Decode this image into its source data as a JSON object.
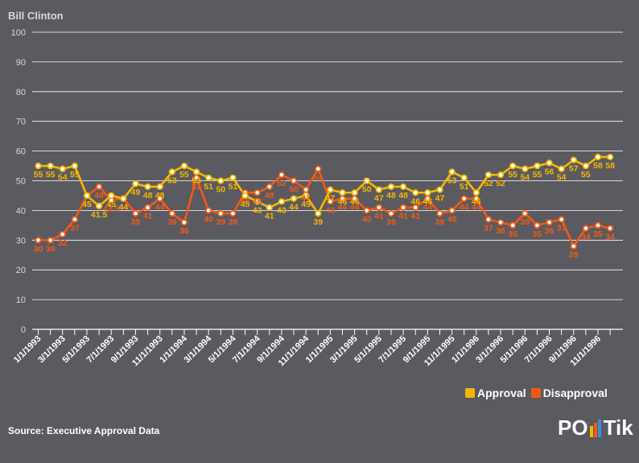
{
  "header": {
    "title": "Bill Clinton"
  },
  "footer": {
    "source": "Source: Executive Approval Data",
    "logo": "POLITIK"
  },
  "colors": {
    "approval": "#f5b800",
    "disapproval": "#f25a14",
    "grid": "#ffffff",
    "background": "#5b5a60"
  },
  "chart_data": {
    "type": "line",
    "title": "Bill Clinton",
    "ylim": [
      0,
      100
    ],
    "yticks": [
      0,
      10,
      20,
      30,
      40,
      50,
      60,
      70,
      80,
      90,
      100
    ],
    "xtick_labels": [
      "1/1/1993",
      "3/1/1993",
      "5/1/1993",
      "7/1/1993",
      "9/1/1993",
      "11/1/1993",
      "1/1/1994",
      "3/1/1994",
      "5/1/1994",
      "7/1/1994",
      "9/1/1994",
      "11/1/1994",
      "1/1/1995",
      "3/1/1995",
      "5/1/1995",
      "7/1/1995",
      "9/1/1995",
      "11/1/1995",
      "1/1/1996",
      "3/1/1996",
      "5/1/1996",
      "7/1/1996",
      "9/1/1996",
      "11/1/1996"
    ],
    "legend_position": "bottom-right",
    "series": [
      {
        "name": "Approval",
        "color": "#f5b800",
        "values": [
          55,
          55,
          54,
          55,
          45,
          41.5,
          45,
          44,
          49,
          48,
          48,
          53,
          55,
          53,
          51,
          50,
          51,
          45,
          43,
          41,
          43,
          44,
          45,
          39,
          47,
          46,
          46,
          50,
          47,
          48,
          48,
          46,
          46,
          47,
          53,
          51,
          46,
          52,
          52,
          55,
          54,
          55,
          56,
          54,
          57,
          55,
          58,
          58
        ],
        "labels": [
          "55",
          "55",
          "54",
          "55",
          "45",
          "41.5",
          "45",
          "44",
          "49",
          "48",
          "48",
          "53",
          "55",
          "53",
          "51",
          "50",
          "51",
          "45",
          "43",
          "41",
          "43",
          "44",
          "45",
          "39",
          "47",
          "46",
          "46",
          "50",
          "47",
          "48",
          "48",
          "46",
          "46",
          "47",
          "53",
          "51",
          "46",
          "52",
          "52",
          "55",
          "54",
          "55",
          "56",
          "54",
          "57",
          "55",
          "58",
          "58"
        ]
      },
      {
        "name": "Disapproval",
        "color": "#f25a14",
        "values": [
          30,
          30,
          32,
          37,
          45,
          48,
          43.5,
          44,
          39,
          41,
          44,
          39,
          36,
          51,
          40,
          39,
          39,
          46,
          46,
          48,
          52,
          50,
          47,
          54,
          43,
          44,
          44,
          40,
          41,
          39,
          41,
          41,
          44,
          39,
          40,
          44,
          44,
          37,
          36,
          35,
          39,
          35,
          36,
          37,
          28,
          34,
          35,
          34
        ],
        "labels": [
          "30",
          "30",
          "32",
          "37",
          "45",
          "48",
          "43.5",
          "44",
          "39",
          "41",
          "44",
          "39",
          "36",
          "51",
          "40",
          "39",
          "39",
          "46",
          "46",
          "48",
          "52",
          "50",
          "47",
          "54",
          "43",
          "44",
          "44",
          "40",
          "41",
          "39",
          "41",
          "41",
          "44",
          "39",
          "40",
          "44",
          "44",
          "37",
          "36",
          "35",
          "39",
          "35",
          "36",
          "37",
          "28",
          "34",
          "35",
          "34"
        ]
      }
    ]
  }
}
